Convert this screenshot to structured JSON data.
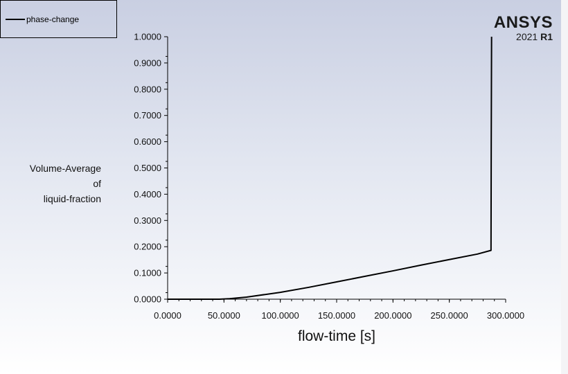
{
  "legend": {
    "label": "phase-change"
  },
  "brand": {
    "name": "ANSYS",
    "year": "2021",
    "release": "R1"
  },
  "chart_data": {
    "type": "line",
    "ylabel_lines": [
      "Volume-Average",
      "of",
      "liquid-fraction"
    ],
    "xlabel": "flow-time [s]",
    "xlim": [
      0,
      300
    ],
    "ylim": [
      0,
      1
    ],
    "x_ticks": [
      "0.0000",
      "50.0000",
      "100.0000",
      "150.0000",
      "200.0000",
      "250.0000",
      "300.0000"
    ],
    "y_ticks": [
      "0.0000",
      "0.1000",
      "0.2000",
      "0.3000",
      "0.4000",
      "0.5000",
      "0.6000",
      "0.7000",
      "0.8000",
      "0.9000",
      "1.0000"
    ],
    "series": [
      {
        "name": "phase-change",
        "color": "#000000",
        "x": [
          0,
          46,
          55,
          70,
          100,
          125,
          150,
          175,
          200,
          225,
          250,
          275,
          287,
          287.2,
          287.5
        ],
        "y": [
          0.0,
          0.0,
          0.002,
          0.008,
          0.026,
          0.045,
          0.066,
          0.087,
          0.108,
          0.13,
          0.151,
          0.172,
          0.186,
          0.6,
          1.0
        ]
      }
    ]
  }
}
